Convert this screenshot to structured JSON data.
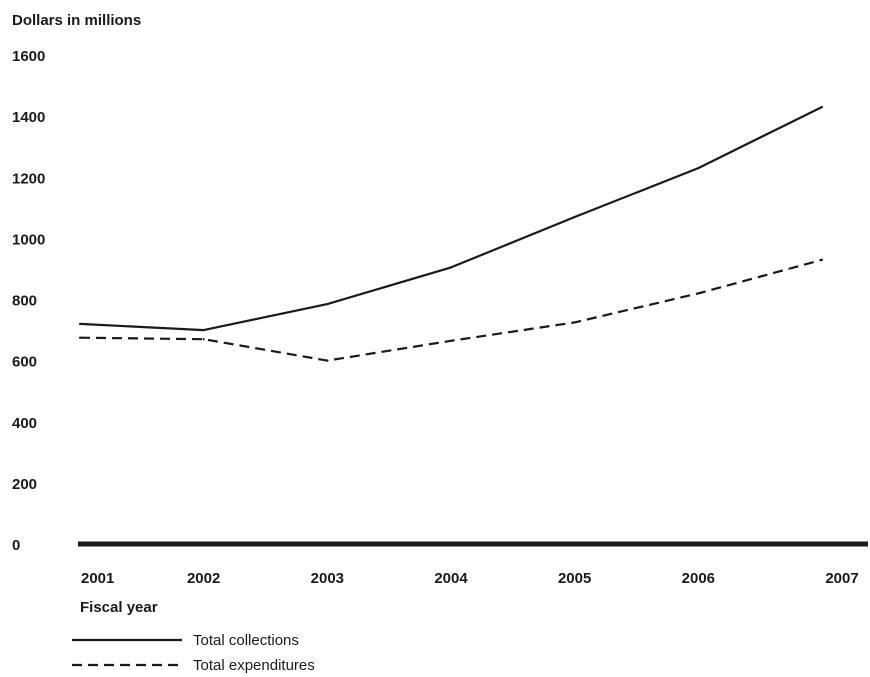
{
  "chart_data": {
    "type": "line",
    "title": "",
    "ylabel": "Dollars in millions",
    "xlabel": "Fiscal year",
    "x": [
      "2001",
      "2002",
      "2003",
      "2004",
      "2005",
      "2006",
      "2007"
    ],
    "yticks": [
      "0",
      "200",
      "400",
      "600",
      "800",
      "1000",
      "1200",
      "1400",
      "1600"
    ],
    "ylim": [
      0,
      1600
    ],
    "grid": false,
    "legend_position": "bottom-left",
    "series": [
      {
        "name": "Total collections",
        "line_style": "solid",
        "color": "#1a1a1a",
        "values": [
          720,
          700,
          785,
          905,
          1070,
          1230,
          1430
        ]
      },
      {
        "name": "Total expenditures",
        "line_style": "dashed",
        "color": "#1a1a1a",
        "values": [
          675,
          670,
          600,
          665,
          725,
          820,
          930
        ]
      }
    ]
  }
}
